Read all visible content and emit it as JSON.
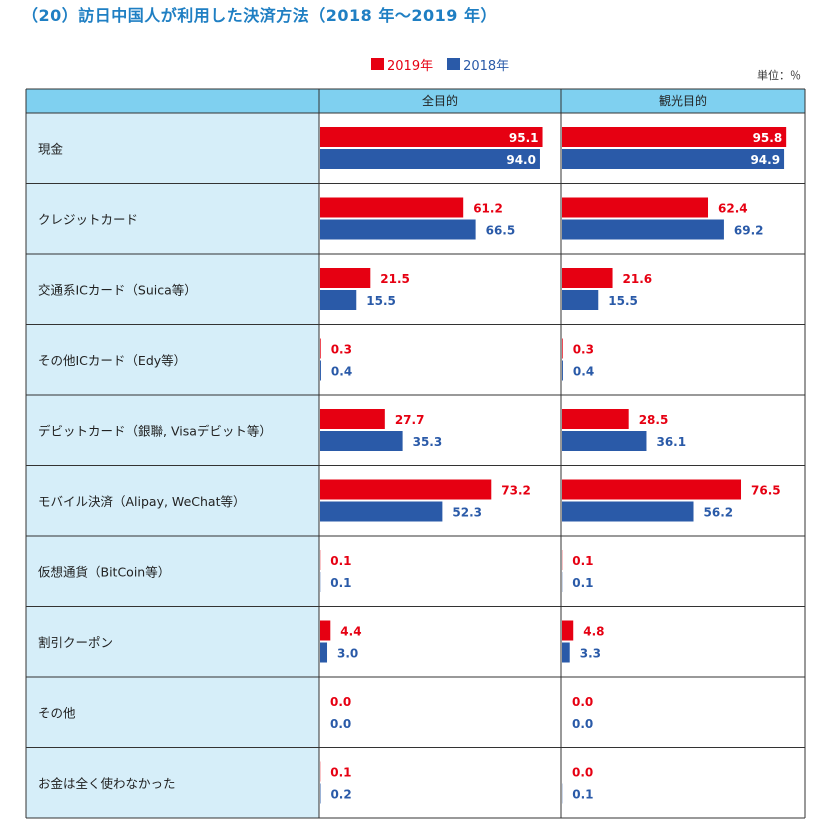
{
  "title": "（20）訪日中国人が利用した決済方法（2018 年〜2019 年）",
  "unit": "単位：％",
  "legend": [
    {
      "label": "2019年",
      "color": "#e60012"
    },
    {
      "label": "2018年",
      "color": "#2a5aa8"
    }
  ],
  "chart_data": {
    "type": "bar",
    "orientation": "horizontal",
    "categories": [
      "現金",
      "クレジットカード",
      "交通系ICカード（Suica等）",
      "その他ICカード（Edy等）",
      "デビットカード（銀聯, Visaデビット等）",
      "モバイル決済（Alipay, WeChat等）",
      "仮想通貨（BitCoin等）",
      "割引クーポン",
      "その他",
      "お金は全く使わなかった"
    ],
    "panels": [
      {
        "title": "全目的",
        "series": [
          {
            "name": "2019年",
            "color": "#e60012",
            "values": [
              95.1,
              61.2,
              21.5,
              0.3,
              27.7,
              73.2,
              0.1,
              4.4,
              0.0,
              0.1
            ],
            "labels": [
              "95.1",
              "61.2",
              "21.5",
              "0.3",
              "27.7",
              "73.2",
              "0.1",
              "4.4",
              "0.0",
              "0.1"
            ]
          },
          {
            "name": "2018年",
            "color": "#2a5aa8",
            "values": [
              94.0,
              66.5,
              15.5,
              0.4,
              35.3,
              52.3,
              0.1,
              3.0,
              0.0,
              0.2
            ],
            "labels": [
              "94.0",
              "66.5",
              "15.5",
              "0.4",
              "35.3",
              "52.3",
              "0.1",
              "3.0",
              "0.0",
              "0.2"
            ]
          }
        ]
      },
      {
        "title": "観光目的",
        "series": [
          {
            "name": "2019年",
            "color": "#e60012",
            "values": [
              95.8,
              62.4,
              21.6,
              0.3,
              28.5,
              76.5,
              0.1,
              4.8,
              0.0,
              0.0
            ],
            "labels": [
              "95.8",
              "62.4",
              "21.6",
              "0.3",
              "28.5",
              "76.5",
              "0.1",
              "4.8",
              "0.0",
              "0.0"
            ]
          },
          {
            "name": "2018年",
            "color": "#2a5aa8",
            "values": [
              94.9,
              69.2,
              15.5,
              0.4,
              36.1,
              56.2,
              0.1,
              3.3,
              0.0,
              0.1
            ],
            "labels": [
              "94.9",
              "69.2",
              "15.5",
              "0.4",
              "36.1",
              "56.2",
              "0.1",
              "3.3",
              "0.0",
              "0.1"
            ]
          }
        ]
      }
    ],
    "xlim": [
      0,
      100
    ],
    "grid": false
  }
}
